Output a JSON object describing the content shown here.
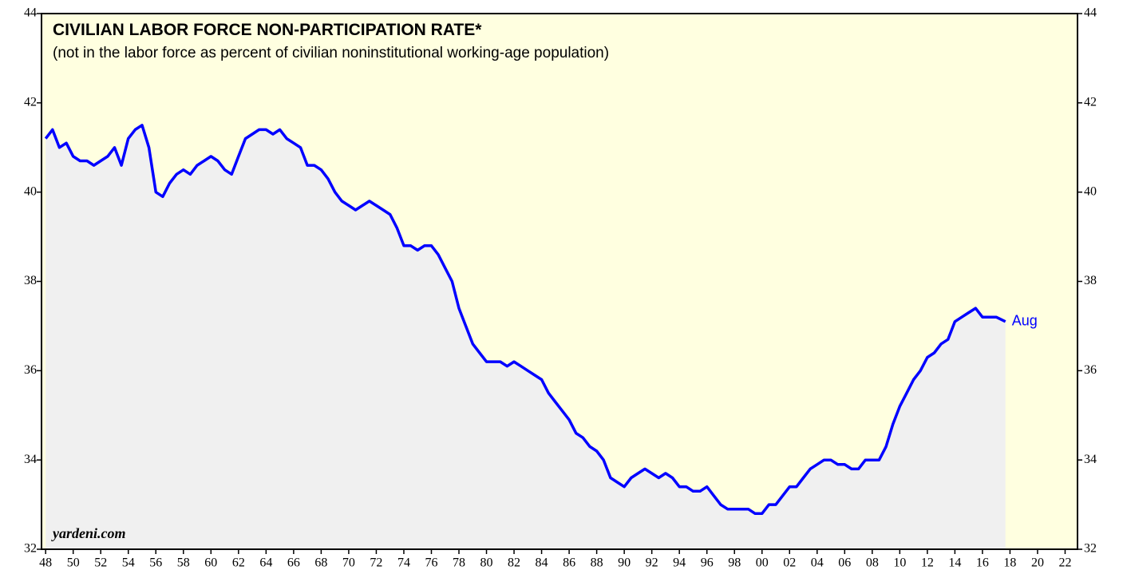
{
  "chart_data": {
    "type": "area-line",
    "title": "CIVILIAN LABOR FORCE NON-PARTICIPATION RATE*",
    "subtitle": "(not in the labor force as percent of civilian noninstitutional working-age population)",
    "source": "yardeni.com",
    "annotation": "Aug",
    "background_color": "#ffffe0",
    "area_color": "#f0f0f0",
    "x": [
      1948,
      1948.5,
      1949,
      1949.5,
      1950,
      1950.5,
      1951,
      1951.5,
      1952,
      1952.5,
      1953,
      1953.5,
      1954,
      1954.5,
      1955,
      1955.5,
      1956,
      1956.5,
      1957,
      1957.5,
      1958,
      1958.5,
      1959,
      1959.5,
      1960,
      1960.5,
      1961,
      1961.5,
      1962,
      1962.5,
      1963,
      1963.5,
      1964,
      1964.5,
      1965,
      1965.5,
      1966,
      1966.5,
      1967,
      1967.5,
      1968,
      1968.5,
      1969,
      1969.5,
      1970,
      1970.5,
      1971,
      1971.5,
      1972,
      1972.5,
      1973,
      1973.5,
      1974,
      1974.5,
      1975,
      1975.5,
      1976,
      1976.5,
      1977,
      1977.5,
      1978,
      1978.5,
      1979,
      1979.5,
      1980,
      1980.5,
      1981,
      1981.5,
      1982,
      1982.5,
      1983,
      1983.5,
      1984,
      1984.5,
      1985,
      1985.5,
      1986,
      1986.5,
      1987,
      1987.5,
      1988,
      1988.5,
      1989,
      1989.5,
      1990,
      1990.5,
      1991,
      1991.5,
      1992,
      1992.5,
      1993,
      1993.5,
      1994,
      1994.5,
      1995,
      1995.5,
      1996,
      1996.5,
      1997,
      1997.5,
      1998,
      1998.5,
      1999,
      1999.5,
      2000,
      2000.5,
      2001,
      2001.5,
      2002,
      2002.5,
      2003,
      2003.5,
      2004,
      2004.5,
      2005,
      2005.5,
      2006,
      2006.5,
      2007,
      2007.5,
      2008,
      2008.5,
      2009,
      2009.5,
      2010,
      2010.5,
      2011,
      2011.5,
      2012,
      2012.5,
      2013,
      2013.5,
      2014,
      2014.5,
      2015,
      2015.5,
      2016,
      2016.5,
      2017,
      2017.67
    ],
    "series": [
      {
        "name": "Non-participation rate",
        "color": "#0000ff",
        "values": [
          41.2,
          41.4,
          41.0,
          41.1,
          40.8,
          40.7,
          40.7,
          40.6,
          40.7,
          40.8,
          41.0,
          40.6,
          41.2,
          41.4,
          41.5,
          41.0,
          40.0,
          39.9,
          40.2,
          40.4,
          40.5,
          40.4,
          40.6,
          40.7,
          40.8,
          40.7,
          40.5,
          40.4,
          40.8,
          41.2,
          41.3,
          41.4,
          41.4,
          41.3,
          41.4,
          41.2,
          41.1,
          41.0,
          40.6,
          40.6,
          40.5,
          40.3,
          40.0,
          39.8,
          39.7,
          39.6,
          39.7,
          39.8,
          39.7,
          39.6,
          39.5,
          39.2,
          38.8,
          38.8,
          38.7,
          38.8,
          38.8,
          38.6,
          38.3,
          38.0,
          37.4,
          37.0,
          36.6,
          36.4,
          36.2,
          36.2,
          36.2,
          36.1,
          36.2,
          36.1,
          36.0,
          35.9,
          35.8,
          35.5,
          35.3,
          35.1,
          34.9,
          34.6,
          34.5,
          34.3,
          34.2,
          34.0,
          33.6,
          33.5,
          33.4,
          33.6,
          33.7,
          33.8,
          33.7,
          33.6,
          33.7,
          33.6,
          33.4,
          33.4,
          33.3,
          33.3,
          33.4,
          33.2,
          33.0,
          32.9,
          32.9,
          32.9,
          32.9,
          32.8,
          32.8,
          33.0,
          33.0,
          33.2,
          33.4,
          33.4,
          33.6,
          33.8,
          33.9,
          34.0,
          34.0,
          33.9,
          33.9,
          33.8,
          33.8,
          34.0,
          34.0,
          34.0,
          34.3,
          34.8,
          35.2,
          35.5,
          35.8,
          36.0,
          36.3,
          36.4,
          36.6,
          36.7,
          37.1,
          37.2,
          37.3,
          37.4,
          37.2,
          37.2,
          37.2,
          37.1
        ]
      }
    ],
    "xlim": [
      1947.7,
      2022.9
    ],
    "ylim": [
      32,
      44
    ],
    "yticks": [
      32,
      34,
      36,
      38,
      40,
      42,
      44
    ],
    "xticks": [
      {
        "value": 1948,
        "label": "48"
      },
      {
        "value": 1950,
        "label": "50"
      },
      {
        "value": 1952,
        "label": "52"
      },
      {
        "value": 1954,
        "label": "54"
      },
      {
        "value": 1956,
        "label": "56"
      },
      {
        "value": 1958,
        "label": "58"
      },
      {
        "value": 1960,
        "label": "60"
      },
      {
        "value": 1962,
        "label": "62"
      },
      {
        "value": 1964,
        "label": "64"
      },
      {
        "value": 1966,
        "label": "66"
      },
      {
        "value": 1968,
        "label": "68"
      },
      {
        "value": 1970,
        "label": "70"
      },
      {
        "value": 1972,
        "label": "72"
      },
      {
        "value": 1974,
        "label": "74"
      },
      {
        "value": 1976,
        "label": "76"
      },
      {
        "value": 1978,
        "label": "78"
      },
      {
        "value": 1980,
        "label": "80"
      },
      {
        "value": 1982,
        "label": "82"
      },
      {
        "value": 1984,
        "label": "84"
      },
      {
        "value": 1986,
        "label": "86"
      },
      {
        "value": 1988,
        "label": "88"
      },
      {
        "value": 1990,
        "label": "90"
      },
      {
        "value": 1992,
        "label": "92"
      },
      {
        "value": 1994,
        "label": "94"
      },
      {
        "value": 1996,
        "label": "96"
      },
      {
        "value": 1998,
        "label": "98"
      },
      {
        "value": 2000,
        "label": "00"
      },
      {
        "value": 2002,
        "label": "02"
      },
      {
        "value": 2004,
        "label": "04"
      },
      {
        "value": 2006,
        "label": "06"
      },
      {
        "value": 2008,
        "label": "08"
      },
      {
        "value": 2010,
        "label": "10"
      },
      {
        "value": 2012,
        "label": "12"
      },
      {
        "value": 2014,
        "label": "14"
      },
      {
        "value": 2016,
        "label": "16"
      },
      {
        "value": 2018,
        "label": "18"
      },
      {
        "value": 2020,
        "label": "20"
      },
      {
        "value": 2022,
        "label": "22"
      }
    ]
  }
}
